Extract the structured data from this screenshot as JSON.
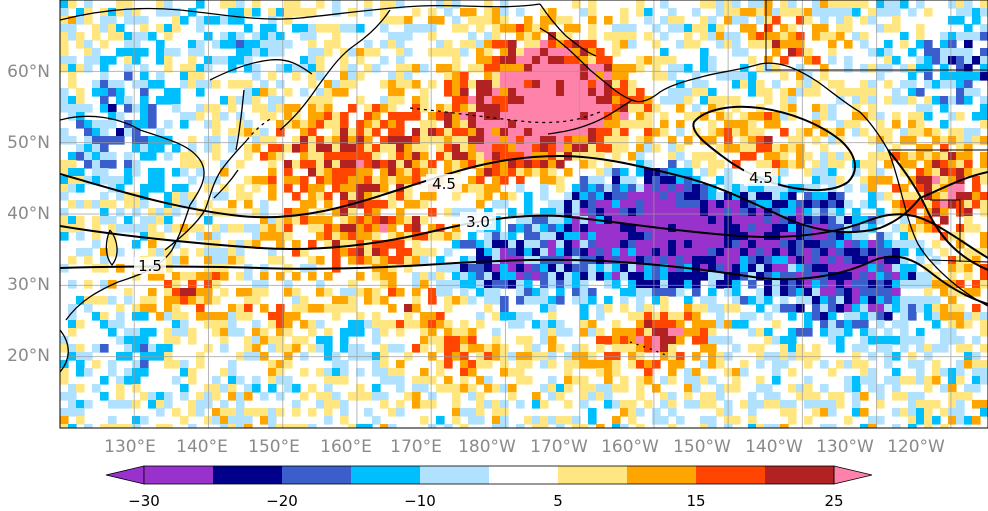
{
  "map": {
    "extent": {
      "lon_min": 120,
      "lon_max": 245,
      "lat_min": 10,
      "lat_max": 70
    },
    "lat_labels": [
      "60°N",
      "50°N",
      "40°N",
      "30°N",
      "20°N"
    ],
    "lon_labels": [
      "130°E",
      "140°E",
      "150°E",
      "160°E",
      "170°E",
      "180°W",
      "170°W",
      "160°W",
      "150°W",
      "140°W",
      "130°W",
      "120°W"
    ],
    "gridlines": true,
    "gridline_color": "#999999",
    "coastline_color": "#000000",
    "contour_color": "#000000",
    "contour_labels": [
      "4.5",
      "3.0",
      "4.5",
      "1.5"
    ]
  },
  "colorbar": {
    "orientation": "horizontal",
    "extend": "both",
    "tick_labels": [
      "−30",
      "−20",
      "−10",
      "5",
      "15",
      "25"
    ],
    "levels": [
      -30,
      -25,
      -20,
      -15,
      -10,
      -5,
      5,
      10,
      15,
      20,
      25,
      30
    ],
    "colors": [
      "#9932cc",
      "#00008b",
      "#3a5fcd",
      "#00bfff",
      "#b0e2ff",
      "#ffffff",
      "#ffe680",
      "#ffa500",
      "#ff4500",
      "#b22222",
      "#ff82ab"
    ]
  }
}
